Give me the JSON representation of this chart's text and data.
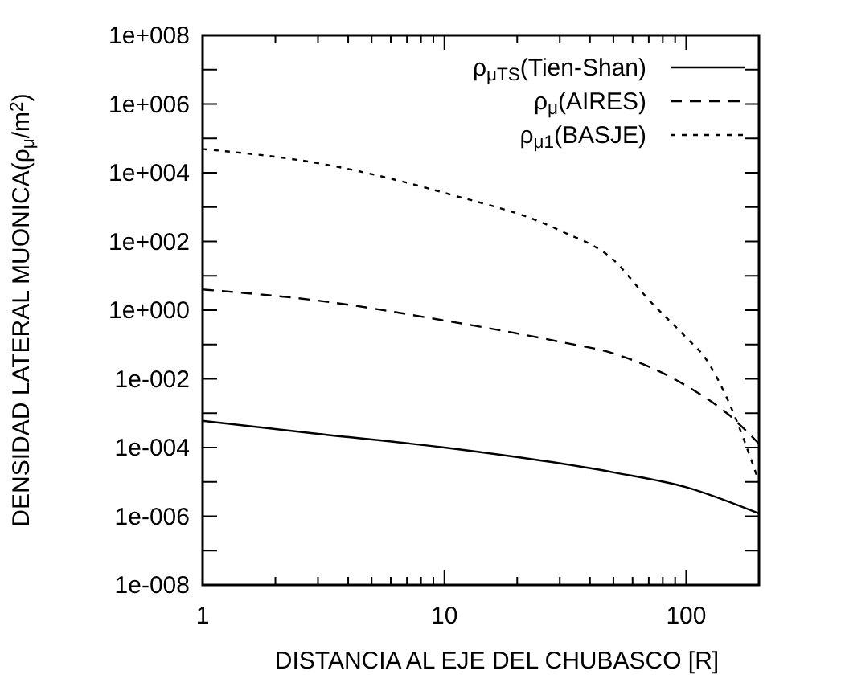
{
  "chart_data": {
    "type": "line",
    "xlabel": "DISTANCIA AL EJE DEL CHUBASCO [R]",
    "ylabel": "DENSIDAD LATERAL MUONICA(ρ$_{μ}$/m$^{2}$)",
    "log": "xy",
    "legend": "top right",
    "grid": false,
    "xlim": [
      1,
      200
    ],
    "ylim": [
      1e-08,
      100000000.0
    ],
    "xticks": [
      1,
      {
        "value": 2,
        "label": null
      },
      {
        "value": 3,
        "label": null
      },
      {
        "value": 4,
        "label": null
      },
      {
        "value": 5,
        "label": null
      },
      {
        "value": 6,
        "label": null
      },
      {
        "value": 7,
        "label": null
      },
      {
        "value": 8,
        "label": null
      },
      {
        "value": 9,
        "label": null
      },
      10,
      {
        "value": 20,
        "label": null
      },
      {
        "value": 30,
        "label": null
      },
      {
        "value": 40,
        "label": null
      },
      {
        "value": 50,
        "label": null
      },
      {
        "value": 60,
        "label": null
      },
      {
        "value": 70,
        "label": null
      },
      {
        "value": 80,
        "label": null
      },
      {
        "value": 90,
        "label": null
      },
      100
    ],
    "yticks": [
      {
        "value": 1e-08,
        "label": "1e-008"
      },
      {
        "value": 1e-07,
        "label": null
      },
      {
        "value": 1e-06,
        "label": "1e-006"
      },
      {
        "value": 1e-05,
        "label": null
      },
      {
        "value": 0.0001,
        "label": "1e-004"
      },
      {
        "value": 0.001,
        "label": null
      },
      {
        "value": 0.01,
        "label": "1e-002"
      },
      {
        "value": 0.1,
        "label": null
      },
      {
        "value": 1,
        "label": "1e+000"
      },
      {
        "value": 10,
        "label": null
      },
      {
        "value": 100,
        "label": "1e+002"
      },
      {
        "value": 1000,
        "label": null
      },
      {
        "value": 10000.0,
        "label": "1e+004"
      },
      {
        "value": 100000.0,
        "label": null
      },
      {
        "value": 1000000.0,
        "label": "1e+006"
      },
      {
        "value": 10000000.0,
        "label": null
      },
      {
        "value": 100000000.0,
        "label": "1e+008"
      }
    ],
    "series": [
      {
        "name": "ρ$_{μTS}$(Tien-Shan)",
        "color": "#000000",
        "line_style": "solid",
        "x": [
          1,
          3,
          10,
          50,
          100,
          200
        ],
        "values": [
          0.0006,
          0.00025,
          0.0001,
          1.9e-05,
          7e-06,
          1.2e-06
        ]
      },
      {
        "name": "ρ$_{μ}$(AIRES)",
        "color": "#000000",
        "line_style": "dashed",
        "x": [
          1,
          3,
          10,
          30,
          50,
          100,
          150,
          200
        ],
        "values": [
          4,
          1.9,
          0.5,
          0.12,
          0.055,
          0.0063,
          0.0009,
          0.00013
        ]
      },
      {
        "name": "ρ$_{μ1}$(BASJE)",
        "color": "#000000",
        "line_style": "dotted",
        "x": [
          1,
          3,
          10,
          30,
          50,
          70,
          100,
          120,
          150,
          200
        ],
        "values": [
          49000,
          19000,
          2600,
          210,
          29,
          2,
          0.16,
          0.04,
          0.0021,
          1e-05
        ]
      }
    ]
  }
}
